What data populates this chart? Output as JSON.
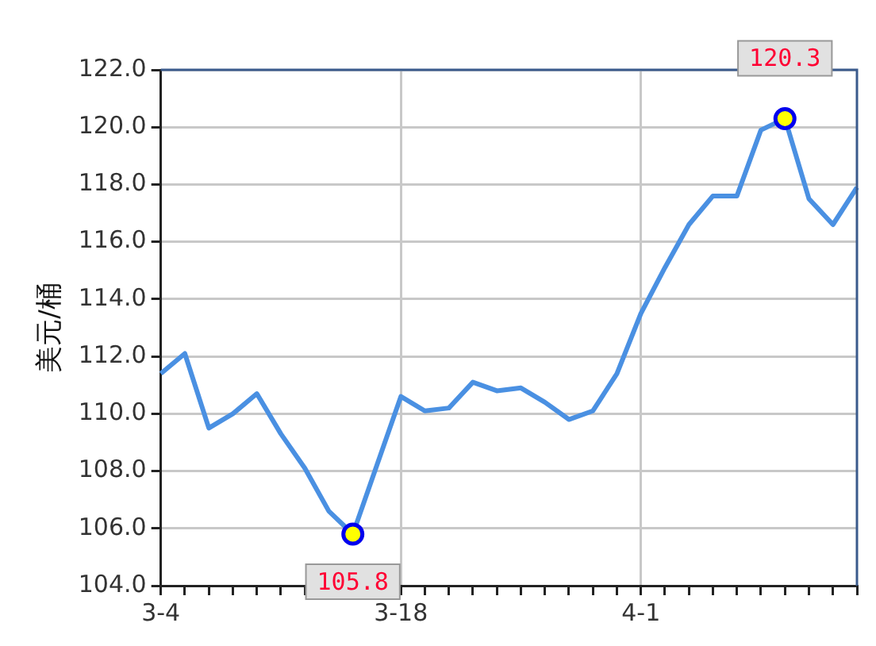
{
  "chart_data": {
    "type": "line",
    "ylabel": "美元/桶",
    "categories": [
      "3-4",
      null,
      null,
      null,
      null,
      null,
      null,
      null,
      null,
      null,
      "3-18",
      null,
      null,
      null,
      null,
      null,
      null,
      null,
      null,
      null,
      "4-1",
      null,
      null,
      null,
      null,
      null,
      null,
      null,
      null,
      null
    ],
    "series": [
      {
        "color": "#4a90e2",
        "values": [
          111.4,
          112.1,
          109.5,
          110.0,
          110.7,
          109.3,
          108.1,
          106.6,
          105.8,
          108.2,
          110.6,
          110.1,
          110.2,
          111.1,
          110.8,
          110.9,
          110.4,
          109.8,
          110.1,
          111.4,
          113.5,
          115.1,
          116.6,
          117.6,
          117.6,
          119.9,
          120.3,
          117.5,
          116.6,
          117.9
        ],
        "value_labels": [
          null,
          null,
          null,
          null,
          null,
          null,
          null,
          null,
          "105.8",
          null,
          null,
          null,
          null,
          null,
          null,
          null,
          null,
          null,
          null,
          null,
          null,
          null,
          null,
          null,
          null,
          null,
          "120.3",
          null,
          null,
          null
        ]
      }
    ],
    "ylim": [
      104,
      122
    ],
    "yticks": [
      {
        "value": 104,
        "label": "104.0"
      },
      {
        "value": 106,
        "label": "106.0"
      },
      {
        "value": 108,
        "label": "108.0"
      },
      {
        "value": 110,
        "label": "110.0"
      },
      {
        "value": 112,
        "label": "112.0"
      },
      {
        "value": 114,
        "label": "114.0"
      },
      {
        "value": 116,
        "label": "116.0"
      },
      {
        "value": 118,
        "label": "118.0"
      },
      {
        "value": 120,
        "label": "120.0"
      },
      {
        "value": 122,
        "label": "122.0"
      }
    ],
    "grid": true,
    "legend": false
  }
}
